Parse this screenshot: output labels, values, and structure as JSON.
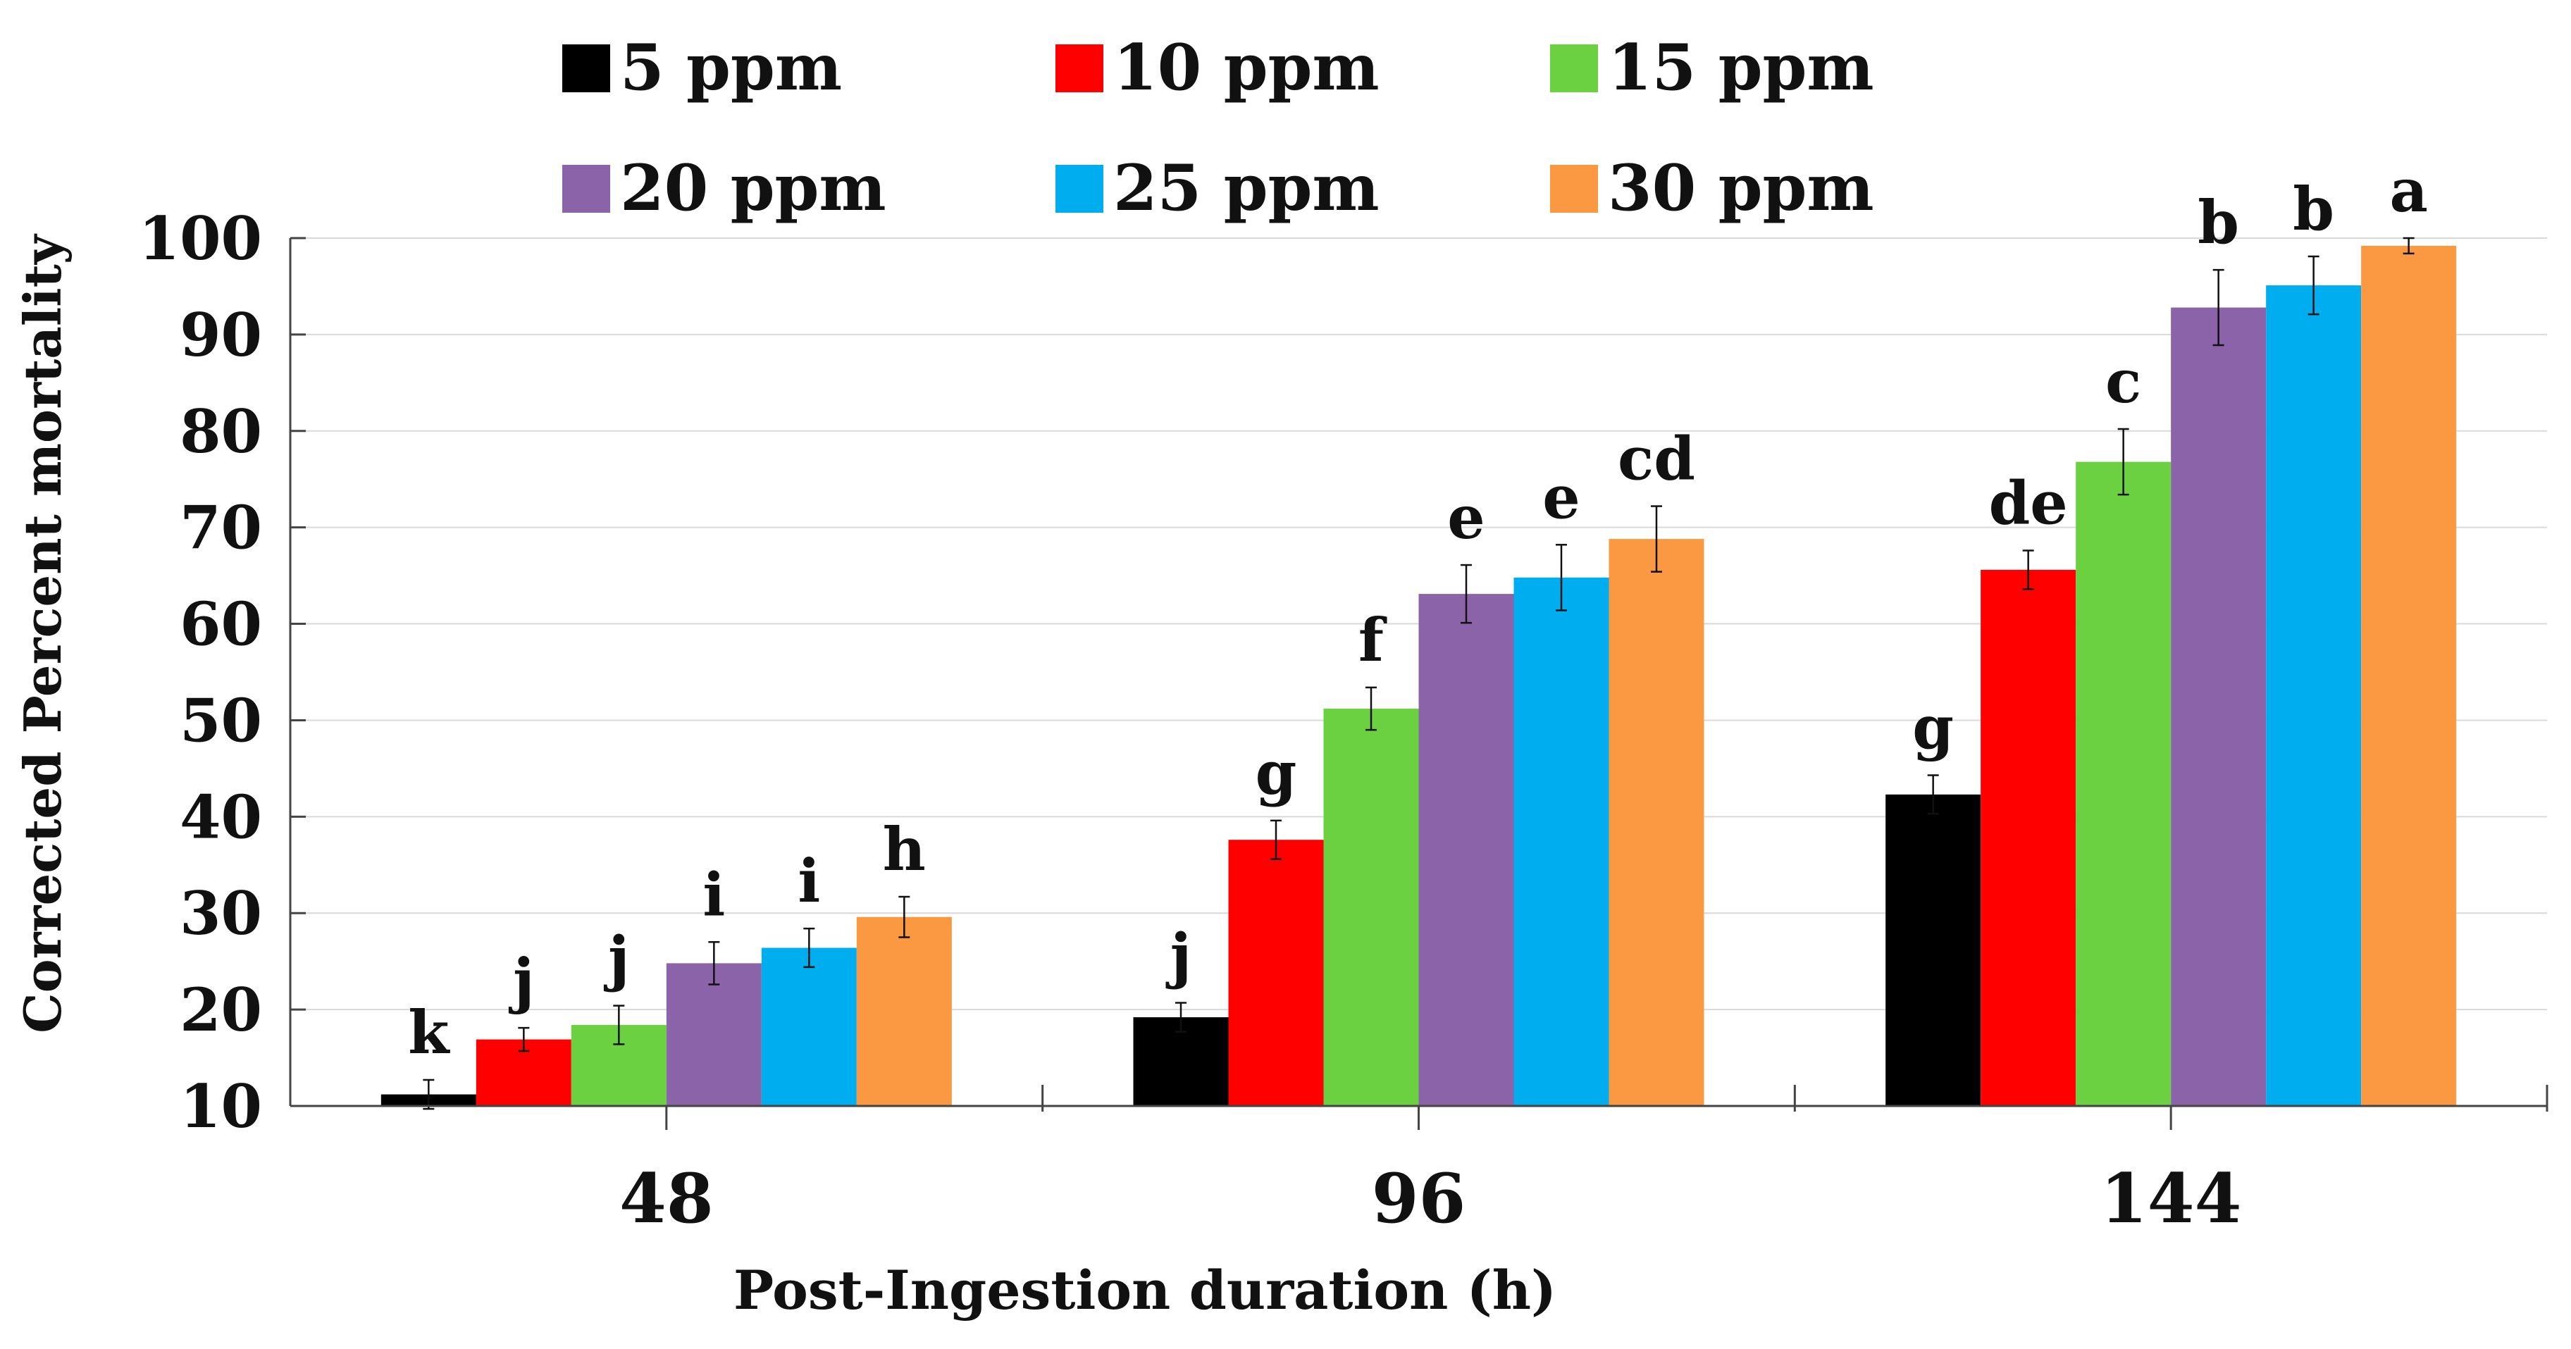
{
  "chart_data": {
    "type": "bar",
    "title": "",
    "xlabel": "Post-Ingestion duration (h)",
    "ylabel": "Corrected Percent mortality",
    "categories": [
      "48",
      "96",
      "144"
    ],
    "ylim": [
      10,
      100
    ],
    "yticks": [
      "10",
      "20",
      "30",
      "40",
      "50",
      "60",
      "70",
      "80",
      "90",
      "100"
    ],
    "grid": true,
    "legend_position": "top",
    "series": [
      {
        "name": "5 ppm",
        "color": "#000000",
        "values": [
          11.2,
          19.2,
          42.3
        ],
        "errors": [
          1.5,
          1.5,
          2.0
        ],
        "labels": [
          "k",
          "j",
          "g"
        ]
      },
      {
        "name": "10 ppm",
        "color": "#ff0000",
        "values": [
          16.9,
          37.6,
          65.6
        ],
        "errors": [
          1.2,
          2.0,
          2.0
        ],
        "labels": [
          "j",
          "g",
          "de"
        ]
      },
      {
        "name": "15 ppm",
        "color": "#6cd141",
        "values": [
          18.4,
          51.2,
          76.8
        ],
        "errors": [
          2.0,
          2.2,
          3.4
        ],
        "labels": [
          "j",
          "f",
          "c"
        ]
      },
      {
        "name": "20 ppm",
        "color": "#8a63a8",
        "values": [
          24.8,
          63.1,
          92.8
        ],
        "errors": [
          2.2,
          3.0,
          3.9
        ],
        "labels": [
          "i",
          "e",
          "b"
        ]
      },
      {
        "name": "25 ppm",
        "color": "#00adef",
        "values": [
          26.4,
          64.8,
          95.1
        ],
        "errors": [
          2.0,
          3.4,
          3.0
        ],
        "labels": [
          "i",
          "e",
          "b"
        ]
      },
      {
        "name": "30 ppm",
        "color": "#fb9942",
        "values": [
          29.6,
          68.8,
          99.2
        ],
        "errors": [
          2.1,
          3.4,
          0.8
        ],
        "labels": [
          "h",
          "cd",
          "a"
        ]
      }
    ]
  }
}
